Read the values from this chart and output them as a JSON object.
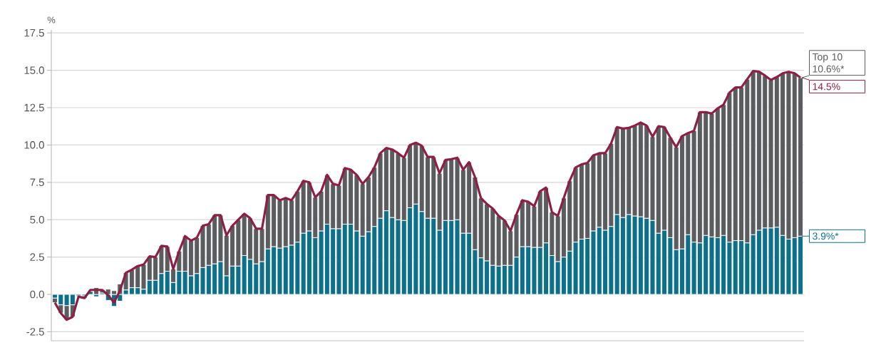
{
  "chart_data": {
    "type": "bar",
    "stacked": true,
    "ylabel": "%",
    "categories": [
      null,
      null,
      null,
      null,
      null,
      null,
      null,
      null,
      null,
      null,
      null,
      null,
      null,
      null,
      null,
      null,
      null,
      null,
      null,
      null,
      null,
      null,
      null,
      null,
      null,
      null,
      null,
      null,
      null,
      null,
      null,
      null,
      null,
      null,
      null,
      null,
      null,
      null,
      null,
      null,
      null,
      null,
      null,
      null,
      null,
      null,
      null,
      null,
      null,
      null,
      null,
      null,
      null,
      null,
      null,
      null,
      null,
      null,
      null,
      null,
      null,
      null,
      null,
      null,
      null,
      null,
      null,
      null,
      null,
      null,
      null,
      null,
      null,
      null,
      null,
      null,
      null,
      null,
      null,
      null,
      null,
      null,
      null,
      null,
      null,
      null,
      null,
      null,
      null,
      null,
      null,
      null,
      null,
      null,
      null,
      null,
      null,
      null,
      null,
      null,
      null,
      null,
      null,
      null,
      null,
      null,
      null,
      null,
      null,
      null,
      null,
      null,
      null,
      null,
      null,
      null,
      null,
      null,
      null,
      null,
      null,
      null,
      null,
      null,
      null,
      null,
      null
    ],
    "series": [
      {
        "color": "#0e6f89",
        "values": [
          -0.25,
          -0.7,
          -0.75,
          -0.7,
          -0.1,
          -0.1,
          0.2,
          -0.15,
          0.1,
          -0.4,
          -0.8,
          -0.45,
          0.3,
          0.45,
          0.45,
          0.35,
          0.95,
          0.95,
          1.4,
          1.55,
          0.8,
          1.55,
          1.55,
          1.25,
          1.4,
          1.8,
          1.95,
          2.05,
          2.2,
          1.25,
          1.9,
          1.9,
          2.6,
          2.35,
          2.05,
          2.2,
          3.05,
          3.2,
          3.1,
          3.2,
          3.3,
          3.5,
          4.1,
          4.25,
          3.8,
          4.25,
          4.7,
          4.4,
          4.4,
          4.7,
          4.7,
          4.25,
          3.9,
          4.2,
          4.55,
          5.1,
          5.6,
          5.15,
          5.0,
          4.95,
          5.8,
          6.05,
          5.55,
          5.1,
          5.1,
          4.3,
          4.95,
          4.95,
          5.0,
          4.1,
          4.1,
          3.0,
          2.45,
          2.25,
          1.95,
          1.9,
          1.95,
          1.95,
          2.5,
          3.2,
          3.2,
          3.15,
          3.15,
          3.45,
          2.6,
          2.2,
          2.5,
          2.9,
          3.5,
          3.7,
          3.75,
          4.25,
          4.5,
          4.3,
          4.55,
          5.35,
          5.15,
          5.35,
          5.25,
          5.2,
          5.1,
          4.95,
          4.1,
          4.3,
          3.8,
          3.0,
          3.05,
          4.0,
          3.5,
          3.45,
          3.95,
          3.85,
          3.8,
          3.95,
          3.5,
          3.6,
          3.6,
          3.45,
          4.0,
          4.3,
          4.45,
          4.45,
          4.5,
          3.95,
          3.7,
          3.8,
          3.9
        ]
      },
      {
        "color": "#5b5c5f",
        "values": [
          -0.3,
          -0.55,
          -0.95,
          -0.8,
          -0.05,
          -0.15,
          null,
          0.45,
          0.2,
          0.35,
          0.25,
          0.7,
          1.15,
          1.2,
          1.45,
          1.65,
          1.6,
          1.55,
          1.85,
          1.65,
          0.9,
          1.35,
          2.35,
          2.35,
          2.4,
          2.8,
          2.75,
          3.25,
          3.1,
          2.7,
          2.7,
          3.1,
          2.8,
          2.75,
          2.35,
          2.2,
          3.6,
          3.45,
          3.2,
          3.25,
          3.0,
          3.4,
          3.5,
          3.25,
          2.7,
          2.65,
          3.3,
          3.0,
          2.9,
          3.75,
          3.65,
          3.75,
          3.5,
          3.65,
          3.95,
          4.35,
          4.2,
          4.55,
          4.45,
          4.2,
          4.2,
          4.1,
          4.4,
          4.1,
          4.1,
          3.8,
          4.05,
          4.1,
          4.15,
          4.25,
          4.75,
          4.85,
          4.0,
          3.8,
          3.8,
          3.35,
          3.0,
          2.3,
          2.85,
          3.1,
          3.0,
          2.75,
          3.75,
          3.7,
          2.9,
          3.05,
          3.95,
          4.7,
          5.0,
          5.0,
          5.05,
          5.05,
          4.95,
          5.15,
          5.55,
          5.85,
          5.95,
          5.8,
          6.05,
          6.3,
          6.2,
          5.6,
          7.15,
          6.9,
          6.7,
          6.85,
          7.55,
          6.8,
          7.45,
          8.75,
          8.25,
          8.25,
          8.65,
          8.75,
          10.0,
          10.25,
          10.25,
          10.95,
          10.95,
          10.6,
          10.2,
          9.9,
          10.05,
          10.85,
          11.2,
          11.0,
          10.6
        ]
      },
      {
        "type": "line",
        "color": "#8c1f45",
        "values": [
          -0.55,
          -1.25,
          -1.7,
          -1.5,
          -0.15,
          -0.25,
          0.3,
          0.3,
          0.3,
          -0.05,
          -0.55,
          0.25,
          1.45,
          1.65,
          1.9,
          2.0,
          2.55,
          2.5,
          3.25,
          3.2,
          1.7,
          2.9,
          3.9,
          3.6,
          3.8,
          4.6,
          4.7,
          5.3,
          5.3,
          3.95,
          4.6,
          5.0,
          5.4,
          5.1,
          4.4,
          4.4,
          6.65,
          6.65,
          6.3,
          6.45,
          6.3,
          6.9,
          7.6,
          7.5,
          6.5,
          6.9,
          8.0,
          7.4,
          7.3,
          8.45,
          8.35,
          8.0,
          7.4,
          7.85,
          8.5,
          9.45,
          9.8,
          9.7,
          9.45,
          9.15,
          10.0,
          10.15,
          9.95,
          9.2,
          9.2,
          8.1,
          9.0,
          9.05,
          9.15,
          8.35,
          8.85,
          7.85,
          6.45,
          6.05,
          5.75,
          5.25,
          4.95,
          4.25,
          5.35,
          6.3,
          6.2,
          5.9,
          6.9,
          7.15,
          5.5,
          5.25,
          6.45,
          7.6,
          8.5,
          8.7,
          8.8,
          9.3,
          9.45,
          9.45,
          10.1,
          11.2,
          11.1,
          11.15,
          11.3,
          11.5,
          11.3,
          10.55,
          11.25,
          11.2,
          10.5,
          9.85,
          10.6,
          10.8,
          10.95,
          12.2,
          12.2,
          12.1,
          12.45,
          12.7,
          13.5,
          13.85,
          13.85,
          14.4,
          14.95,
          14.9,
          14.65,
          14.35,
          14.55,
          14.8,
          14.9,
          14.8,
          14.5
        ]
      }
    ],
    "ylim": [
      -3.1,
      17.7
    ],
    "yticks": [
      -2.5,
      {
        "value": 0,
        "label": "0.0"
      },
      2.5,
      {
        "value": 5,
        "label": "5.0"
      },
      7.5,
      {
        "value": 10,
        "label": "10.0"
      },
      12.5,
      {
        "value": 15,
        "label": "15.0"
      },
      17.5
    ],
    "grid": "y",
    "annotations": [
      "3.9%*",
      "Top 10 10.6%*",
      "14.5%"
    ]
  }
}
